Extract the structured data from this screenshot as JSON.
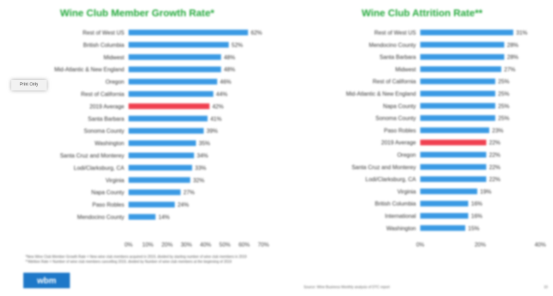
{
  "chart_data": [
    {
      "type": "bar",
      "orientation": "horizontal",
      "title": "Wine Club Member Growth Rate*",
      "categories": [
        "Rest of West US",
        "British Columbia",
        "Midwest",
        "Mid-Atlantic & New England",
        "Oregon",
        "Rest of California",
        "2019 Average",
        "Santa Barbara",
        "Sonoma County",
        "Washington",
        "Santa Cruz and Monterey",
        "Lodi/Clarksburg, CA",
        "Virginia",
        "Napa County",
        "Paso Robles",
        "Mendocino County"
      ],
      "values": [
        62,
        52,
        48,
        48,
        46,
        44,
        42,
        41,
        39,
        35,
        34,
        33,
        32,
        27,
        24,
        14
      ],
      "value_labels": [
        "62%",
        "52%",
        "48%",
        "48%",
        "46%",
        "44%",
        "42%",
        "41%",
        "39%",
        "35%",
        "34%",
        "33%",
        "32%",
        "27%",
        "24%",
        "14%"
      ],
      "highlight_category": "2019 Average",
      "bar_color": "#3a9ae4",
      "highlight_color": "#f04050",
      "xlim": [
        0,
        70
      ],
      "xticks": [
        "0%",
        "10%",
        "20%",
        "30%",
        "40%",
        "50%",
        "60%",
        "70%"
      ],
      "grid": false
    },
    {
      "type": "bar",
      "orientation": "horizontal",
      "title": "Wine Club Attrition Rate**",
      "categories": [
        "Rest of West US",
        "Mendocino County",
        "Santa Barbara",
        "Midwest",
        "Rest of California",
        "Mid-Atlantic & New England",
        "Napa County",
        "Sonoma County",
        "Paso Robles",
        "2019 Average",
        "Oregon",
        "Santa Cruz and Monterey",
        "Lodi/Clarksburg, CA",
        "Virginia",
        "British Columbia",
        "International",
        "Washington"
      ],
      "values": [
        31,
        28,
        28,
        27,
        25,
        25,
        25,
        25,
        23,
        22,
        22,
        22,
        22,
        19,
        16,
        16,
        15
      ],
      "value_labels": [
        "31%",
        "28%",
        "28%",
        "27%",
        "25%",
        "25%",
        "25%",
        "25%",
        "23%",
        "22%",
        "22%",
        "22%",
        "22%",
        "19%",
        "16%",
        "16%",
        "15%"
      ],
      "highlight_category": "2019 Average",
      "bar_color": "#3a9ae4",
      "highlight_color": "#f04050",
      "xlim": [
        0,
        40
      ],
      "xticks": [
        "0%",
        "20%",
        "40%"
      ],
      "grid": false
    }
  ],
  "footnotes": [
    "*New Wine Club Member Growth Rate = New wine club members acquired in 2019, divided by starting number of wine club members in 2019",
    "**Attrition Rate = Number of wine club members cancelling 2019, divided by Number of wine club members at the beginning of 2019"
  ],
  "tooltip_text": "Print Only",
  "logo_text": "wbm",
  "source_note": "Source: Wine Business Monthly analysis of DTC report",
  "page_number": "10"
}
